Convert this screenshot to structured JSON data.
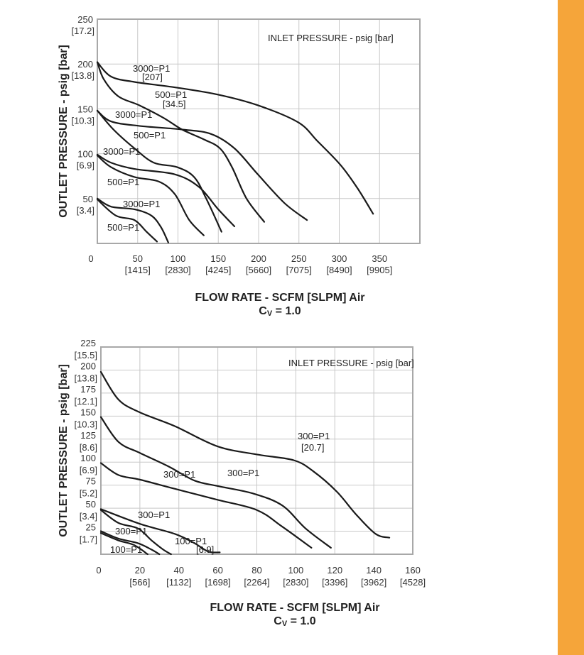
{
  "colors": {
    "side_bar": "#F5A53A",
    "curve": "#1a1a1a",
    "grid": "#c8c8c8"
  },
  "chart_data": [
    {
      "type": "line",
      "ylabel": "OUTLET PRESSURE - psig [bar]",
      "xlabel": "FLOW RATE - SCFM [SLPM] Air",
      "xlabel2_main": "C",
      "xlabel2_sub": "V",
      "xlabel2_rest": " = 1.0",
      "legend_title": "INLET PRESSURE - psig [bar]",
      "xlim": [
        0,
        400
      ],
      "ylim": [
        0,
        250
      ],
      "grid": true,
      "zero_label": "0",
      "xticks": [
        {
          "v": 50,
          "label": "50",
          "sub": "[1415]"
        },
        {
          "v": 100,
          "label": "100",
          "sub": "[2830]"
        },
        {
          "v": 150,
          "label": "150",
          "sub": "[4245]"
        },
        {
          "v": 200,
          "label": "200",
          "sub": "[5660]"
        },
        {
          "v": 250,
          "label": "250",
          "sub": "[7075]"
        },
        {
          "v": 300,
          "label": "300",
          "sub": "[8490]"
        },
        {
          "v": 350,
          "label": "350",
          "sub": "[9905]"
        }
      ],
      "yticks": [
        {
          "v": 250,
          "label": "250",
          "sub": "[17.2]"
        },
        {
          "v": 200,
          "label": "200",
          "sub": "[13.8]"
        },
        {
          "v": 150,
          "label": "150",
          "sub": "[10.3]"
        },
        {
          "v": 100,
          "label": "100",
          "sub": "[6.9]"
        },
        {
          "v": 50,
          "label": "50",
          "sub": "[3.4]"
        }
      ],
      "series": [
        {
          "name": "3000=P1",
          "sub": "[207]",
          "points": [
            [
              0,
              202
            ],
            [
              17,
              186
            ],
            [
              46,
              180
            ],
            [
              96,
              174
            ],
            [
              149,
              166
            ],
            [
              199,
              154
            ],
            [
              249,
              135
            ],
            [
              273,
              114
            ],
            [
              302,
              87
            ],
            [
              323,
              61
            ],
            [
              342,
              33
            ]
          ]
        },
        {
          "name": "500=P1",
          "sub": "[34.5]",
          "points": [
            [
              0,
              202
            ],
            [
              8,
              183
            ],
            [
              26,
              164
            ],
            [
              52,
              154
            ],
            [
              82,
              140
            ],
            [
              105,
              127
            ],
            [
              132,
              116
            ],
            [
              152,
              106
            ],
            [
              167,
              85
            ],
            [
              185,
              50
            ],
            [
              207,
              24
            ]
          ]
        },
        {
          "name": "3000=P1",
          "points": [
            [
              0,
              148
            ],
            [
              17,
              136
            ],
            [
              52,
              131
            ],
            [
              105,
              127
            ],
            [
              141,
              122
            ],
            [
              170,
              106
            ],
            [
              199,
              77
            ],
            [
              232,
              45
            ],
            [
              260,
              26
            ]
          ]
        },
        {
          "name": "500=P1",
          "points": [
            [
              0,
              148
            ],
            [
              20,
              127
            ],
            [
              46,
              106
            ],
            [
              70,
              90
            ],
            [
              99,
              85
            ],
            [
              120,
              74
            ],
            [
              135,
              50
            ],
            [
              154,
              13
            ]
          ]
        },
        {
          "name": "3000=P1",
          "points": [
            [
              0,
              99
            ],
            [
              17,
              90
            ],
            [
              46,
              83
            ],
            [
              96,
              77
            ],
            [
              126,
              63
            ],
            [
              149,
              39
            ],
            [
              170,
              19
            ]
          ]
        },
        {
          "name": "500=P1",
          "points": [
            [
              0,
              98
            ],
            [
              17,
              85
            ],
            [
              46,
              74
            ],
            [
              76,
              69
            ],
            [
              96,
              55
            ],
            [
              114,
              26
            ],
            [
              132,
              9
            ]
          ]
        },
        {
          "name": "3000=P1",
          "points": [
            [
              0,
              50
            ],
            [
              17,
              41
            ],
            [
              46,
              38
            ],
            [
              67,
              31
            ],
            [
              79,
              18
            ],
            [
              88,
              1
            ]
          ]
        },
        {
          "name": "500=P1",
          "points": [
            [
              0,
              49
            ],
            [
              23,
              31
            ],
            [
              46,
              26
            ],
            [
              61,
              13
            ],
            [
              74,
              2
            ]
          ]
        }
      ]
    },
    {
      "type": "line",
      "ylabel": "OUTLET PRESSURE - psig [bar]",
      "xlabel": "FLOW RATE - SCFM [SLPM] Air",
      "xlabel2_main": "C",
      "xlabel2_sub": "V",
      "xlabel2_rest": " = 1.0",
      "legend_title": "INLET PRESSURE - psig [bar]",
      "xlim": [
        0,
        160
      ],
      "ylim": [
        0,
        225
      ],
      "grid": true,
      "zero_label": "0",
      "xticks": [
        {
          "v": 20,
          "label": "20",
          "sub": "[566]"
        },
        {
          "v": 40,
          "label": "40",
          "sub": "[1132]"
        },
        {
          "v": 60,
          "label": "60",
          "sub": "[1698]"
        },
        {
          "v": 80,
          "label": "80",
          "sub": "[2264]"
        },
        {
          "v": 100,
          "label": "100",
          "sub": "[2830]"
        },
        {
          "v": 120,
          "label": "120",
          "sub": "[3396]"
        },
        {
          "v": 140,
          "label": "140",
          "sub": "[3962]"
        },
        {
          "v": 160,
          "label": "160",
          "sub": "[4528]"
        }
      ],
      "yticks": [
        {
          "v": 225,
          "label": "225",
          "sub": "[15.5]"
        },
        {
          "v": 200,
          "label": "200",
          "sub": "[13.8]"
        },
        {
          "v": 175,
          "label": "175",
          "sub": "[12.1]"
        },
        {
          "v": 150,
          "label": "150",
          "sub": "[10.3]"
        },
        {
          "v": 125,
          "label": "125",
          "sub": "[8.6]"
        },
        {
          "v": 100,
          "label": "100",
          "sub": "[6.9]"
        },
        {
          "v": 75,
          "label": "75",
          "sub": "[5.2]"
        },
        {
          "v": 50,
          "label": "50",
          "sub": "[3.4]"
        },
        {
          "v": 25,
          "label": "25",
          "sub": "[1.7]"
        }
      ],
      "series": [
        {
          "name": "300=P1",
          "sub": "[20.7]",
          "points": [
            [
              0,
              198
            ],
            [
              9,
              168
            ],
            [
              20,
              154
            ],
            [
              38,
              139
            ],
            [
              60,
              117
            ],
            [
              81,
              108
            ],
            [
              99,
              102
            ],
            [
              109,
              90
            ],
            [
              121,
              68
            ],
            [
              131,
              43
            ],
            [
              141,
              22
            ],
            [
              148,
              18
            ]
          ]
        },
        {
          "name": "300=P1",
          "points": [
            [
              0,
              149
            ],
            [
              9,
              122
            ],
            [
              20,
              110
            ],
            [
              35,
              95
            ],
            [
              48,
              80
            ],
            [
              60,
              74
            ],
            [
              78,
              66
            ],
            [
              93,
              53
            ],
            [
              105,
              28
            ],
            [
              118,
              7
            ]
          ]
        },
        {
          "name": "300=P1",
          "points": [
            [
              0,
              99
            ],
            [
              9,
              86
            ],
            [
              20,
              81
            ],
            [
              38,
              71
            ],
            [
              60,
              59
            ],
            [
              80,
              48
            ],
            [
              93,
              30
            ],
            [
              108,
              7
            ]
          ]
        },
        {
          "name": "300=P1",
          "points": [
            [
              0,
              49
            ],
            [
              20,
              33
            ],
            [
              38,
              22
            ],
            [
              48,
              12
            ],
            [
              55,
              3
            ],
            [
              61,
              2
            ]
          ]
        },
        {
          "name": "100=P1",
          "sub": "[6.9]",
          "points": [
            [
              0,
              48
            ],
            [
              9,
              34
            ],
            [
              19,
              28
            ],
            [
              26,
              15
            ],
            [
              32,
              5
            ],
            [
              36,
              0
            ]
          ]
        },
        {
          "name": "300=P1",
          "points": [
            [
              0,
              25
            ],
            [
              9,
              17
            ],
            [
              19,
              12
            ],
            [
              26,
              5
            ],
            [
              30,
              0
            ]
          ]
        },
        {
          "name": "100=P1",
          "points": [
            [
              0,
              23
            ],
            [
              9,
              15
            ],
            [
              17,
              10
            ],
            [
              24,
              0
            ]
          ]
        }
      ]
    }
  ]
}
